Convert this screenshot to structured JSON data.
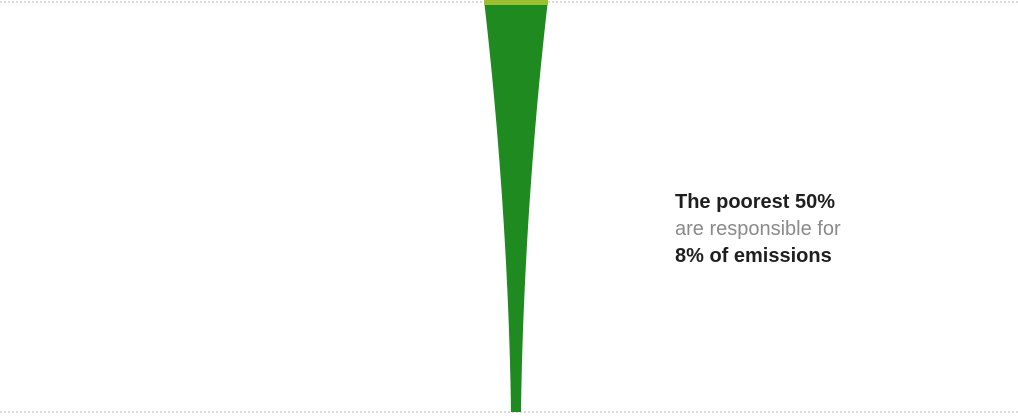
{
  "chart_data": {
    "type": "area",
    "title": "",
    "xlabel": "",
    "ylabel": "",
    "grid": false,
    "segment": {
      "group": "The poorest 50%",
      "share_of_emissions_percent": 8,
      "color": "#1f8a1f",
      "highlight_color": "#9bbf2e"
    },
    "annotation": {
      "line1": "The poorest 50%",
      "line2": "are responsible for",
      "line3": "8% of emissions"
    },
    "colors": {
      "divider": "#cfcfcf",
      "text_dark": "#1f1f1f",
      "text_light": "#8a8a8a"
    }
  }
}
